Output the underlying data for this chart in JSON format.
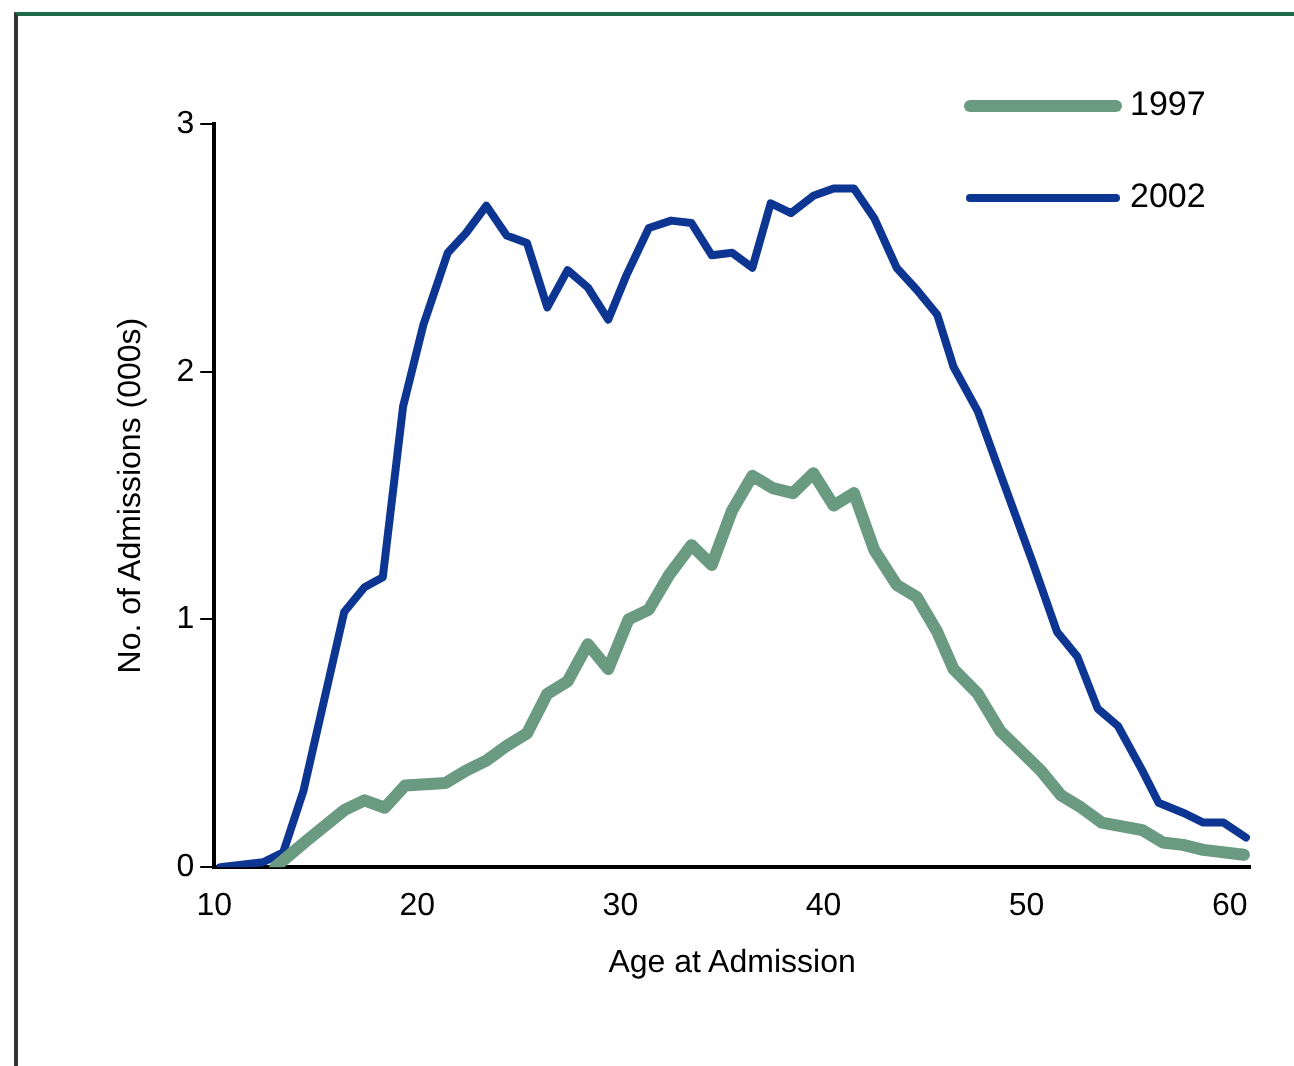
{
  "chart_data": {
    "type": "line",
    "xlabel": "Age at Admission",
    "ylabel": "No. of Admissions (000s)",
    "xlim": [
      10,
      61
    ],
    "xticks": [
      10,
      20,
      30,
      40,
      50,
      60
    ],
    "ylim": [
      0,
      3
    ],
    "yticks": [
      0,
      1,
      2,
      3
    ],
    "grid": false,
    "legend": "top right",
    "marker": "none",
    "line_style": "solid",
    "series": [
      {
        "name": "1997",
        "color": "#6a9a80",
        "x": [
          13,
          14.6,
          16.4,
          17.4,
          18.4,
          19.4,
          21.4,
          22.4,
          23.4,
          24.4,
          25.4,
          26.4,
          27.4,
          28.4,
          29.4,
          30.4,
          31.4,
          32.4,
          33.5,
          34.5,
          35.5,
          36.5,
          37.5,
          38.5,
          39.5,
          40.5,
          41.5,
          42.5,
          43.6,
          44.6,
          45.6,
          46.4,
          47.6,
          48.7,
          49.7,
          50.7,
          51.7,
          52.7,
          53.7,
          55.7,
          56.7,
          57.7,
          58.7,
          60.7
        ],
        "values": [
          0,
          0.11,
          0.23,
          0.27,
          0.24,
          0.33,
          0.34,
          0.39,
          0.43,
          0.49,
          0.54,
          0.7,
          0.75,
          0.9,
          0.8,
          1.0,
          1.04,
          1.18,
          1.3,
          1.22,
          1.44,
          1.58,
          1.53,
          1.51,
          1.59,
          1.46,
          1.51,
          1.28,
          1.14,
          1.09,
          0.95,
          0.8,
          0.7,
          0.55,
          0.47,
          0.39,
          0.29,
          0.24,
          0.18,
          0.15,
          0.1,
          0.09,
          0.07,
          0.05
        ]
      },
      {
        "name": "2002",
        "color": "#0d3592",
        "x": [
          10.3,
          12.4,
          13.4,
          14.4,
          16.4,
          17.4,
          18.3,
          19.3,
          20.3,
          21.5,
          22.4,
          23.4,
          24.4,
          25.4,
          26.4,
          27.4,
          28.4,
          29.4,
          30.3,
          31.4,
          32.5,
          33.5,
          34.5,
          35.5,
          36.5,
          37.4,
          38.4,
          39.5,
          40.5,
          41.5,
          42.5,
          43.6,
          44.6,
          45.6,
          46.4,
          47.6,
          48.7,
          50.3,
          51.5,
          52.5,
          53.5,
          54.5,
          55.7,
          56.5,
          57.7,
          58.7,
          59.7,
          60.8
        ],
        "values": [
          0,
          0.02,
          0.06,
          0.31,
          1.03,
          1.13,
          1.17,
          1.86,
          2.19,
          2.48,
          2.56,
          2.67,
          2.55,
          2.52,
          2.26,
          2.41,
          2.34,
          2.21,
          2.39,
          2.58,
          2.61,
          2.6,
          2.47,
          2.48,
          2.42,
          2.68,
          2.64,
          2.71,
          2.74,
          2.74,
          2.62,
          2.42,
          2.33,
          2.23,
          2.02,
          1.84,
          1.59,
          1.23,
          0.95,
          0.85,
          0.64,
          0.57,
          0.39,
          0.26,
          0.22,
          0.18,
          0.18,
          0.12
        ]
      }
    ]
  }
}
